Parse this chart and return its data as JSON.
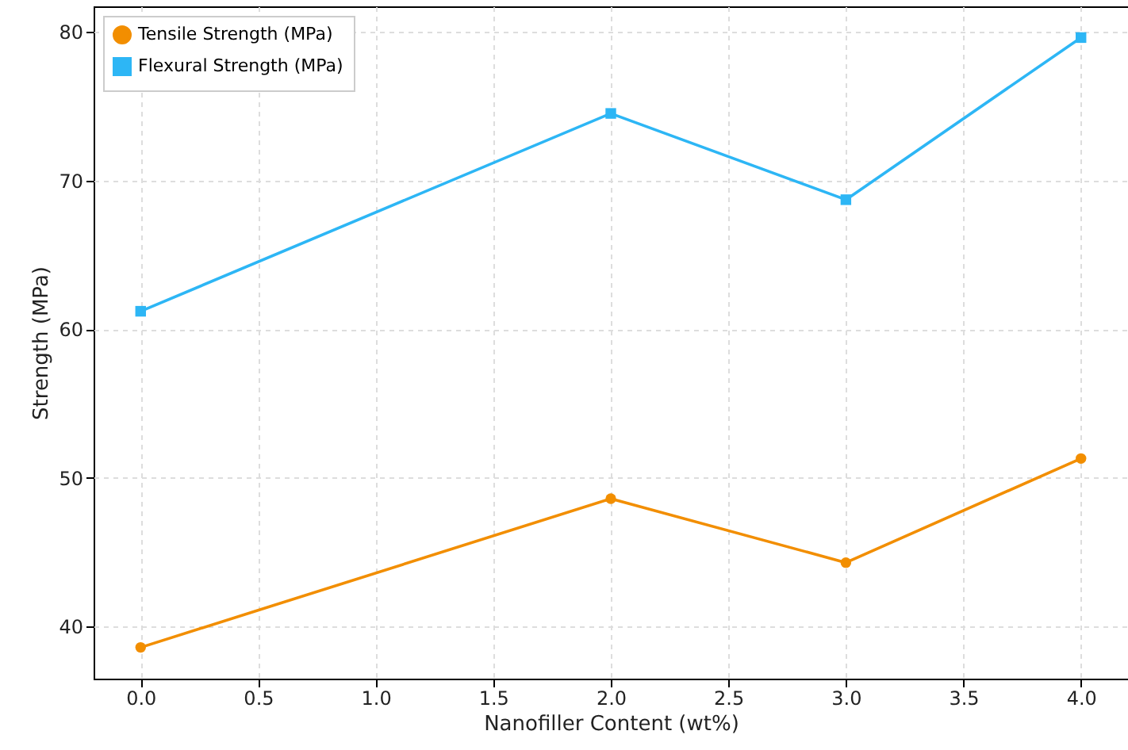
{
  "chart_data": {
    "type": "line",
    "xlabel": "Nanofiller Content (wt%)",
    "ylabel": "Strength (MPa)",
    "x": [
      0,
      2,
      3,
      4
    ],
    "series": [
      {
        "name": "Tensile Strength (MPa)",
        "color": "#f28e00",
        "marker": "circle",
        "values": [
          38.6,
          48.6,
          44.3,
          51.3
        ]
      },
      {
        "name": "Flexural Strength (MPa)",
        "color": "#2db6f5",
        "marker": "square",
        "values": [
          61.2,
          74.5,
          68.7,
          79.6
        ]
      }
    ],
    "xlim": [
      -0.2,
      4.2
    ],
    "ylim": [
      36.5,
      81.7
    ],
    "xticks": [
      {
        "value": 0,
        "label": "0.0"
      },
      {
        "value": 0.5,
        "label": "0.5"
      },
      {
        "value": 1,
        "label": "1.0"
      },
      {
        "value": 1.5,
        "label": "1.5"
      },
      {
        "value": 2,
        "label": "2.0"
      },
      {
        "value": 2.5,
        "label": "2.5"
      },
      {
        "value": 3,
        "label": "3.0"
      },
      {
        "value": 3.5,
        "label": "3.5"
      },
      {
        "value": 4,
        "label": "4.0"
      }
    ],
    "yticks": [
      40,
      50,
      60,
      70,
      80
    ],
    "grid": true,
    "legend": "top left",
    "line_style": "solid"
  }
}
